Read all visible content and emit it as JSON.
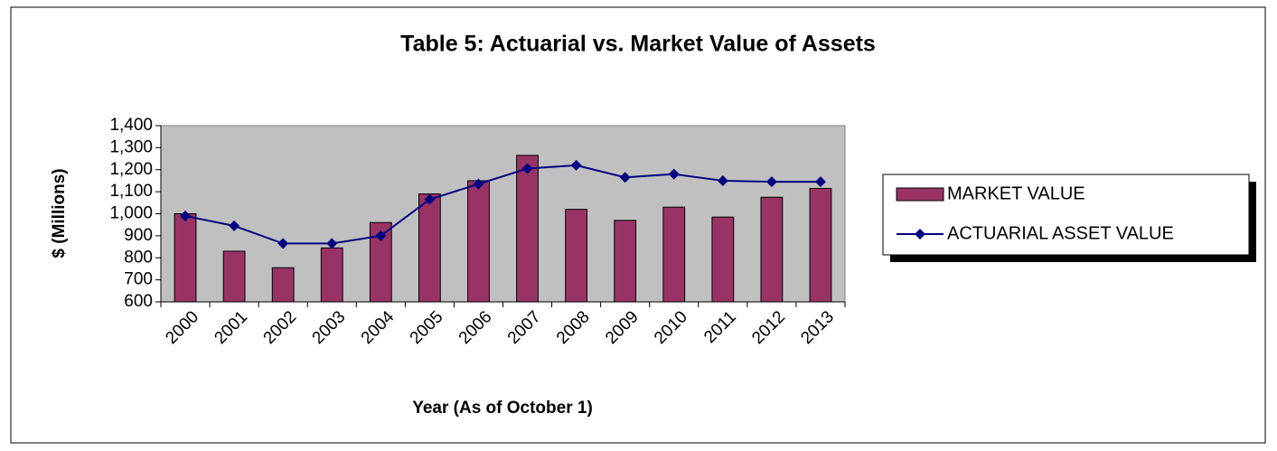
{
  "chart_data": {
    "type": "bar_line",
    "title": "Table 5:  Actuarial vs. Market Value of Assets",
    "x_label": "Year (As of October 1)",
    "y_label": "$ (Millions)",
    "categories": [
      "2000",
      "2001",
      "2002",
      "2003",
      "2004",
      "2005",
      "2006",
      "2007",
      "2008",
      "2009",
      "2010",
      "2011",
      "2012",
      "2013"
    ],
    "series": [
      {
        "name": "MARKET VALUE",
        "type": "bar",
        "color": "#993366",
        "values": [
          1000,
          830,
          755,
          845,
          960,
          1090,
          1150,
          1265,
          1020,
          970,
          1030,
          985,
          1075,
          1115
        ]
      },
      {
        "name": "ACTUARIAL ASSET VALUE",
        "type": "line",
        "color": "#000080",
        "values": [
          990,
          945,
          865,
          865,
          900,
          1065,
          1135,
          1205,
          1220,
          1165,
          1180,
          1150,
          1145,
          1145
        ]
      }
    ],
    "ylim": [
      600,
      1400
    ],
    "yticks": [
      600,
      700,
      800,
      900,
      {
        "value": 1000,
        "label": "1,000"
      },
      {
        "value": 1100,
        "label": "1,100"
      },
      {
        "value": 1200,
        "label": "1,200"
      },
      {
        "value": 1300,
        "label": "1,300"
      },
      {
        "value": 1400,
        "label": "1,400"
      }
    ],
    "legend": "right"
  }
}
